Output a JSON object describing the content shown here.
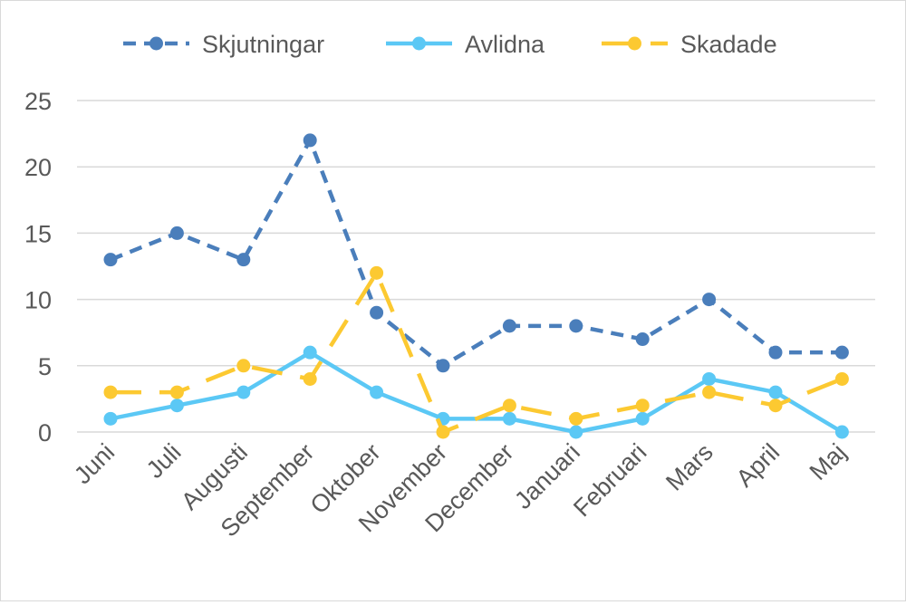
{
  "chart_data": {
    "type": "line",
    "categories": [
      "Juni",
      "Juli",
      "Augusti",
      "September",
      "Oktober",
      "November",
      "December",
      "Januari",
      "Februari",
      "Mars",
      "April",
      "Maj"
    ],
    "series": [
      {
        "name": "Skjutningar",
        "values": [
          13,
          15,
          13,
          22,
          9,
          5,
          8,
          8,
          7,
          10,
          6,
          6
        ],
        "color": "#4a7ebb",
        "dash": "dashed"
      },
      {
        "name": "Avlidna",
        "values": [
          1,
          2,
          3,
          6,
          3,
          1,
          1,
          0,
          1,
          4,
          3,
          0
        ],
        "color": "#5bc8f5",
        "dash": "solid"
      },
      {
        "name": "Skadade",
        "values": [
          3,
          3,
          5,
          4,
          12,
          0,
          2,
          1,
          2,
          3,
          2,
          4
        ],
        "color": "#fcc931",
        "dash": "long-dash"
      }
    ],
    "yticks": [
      "0",
      "5",
      "10",
      "15",
      "20",
      "25"
    ],
    "ylim": [
      0,
      25
    ],
    "grid": true,
    "legend_position": "top",
    "title": "",
    "xlabel": "",
    "ylabel": ""
  }
}
